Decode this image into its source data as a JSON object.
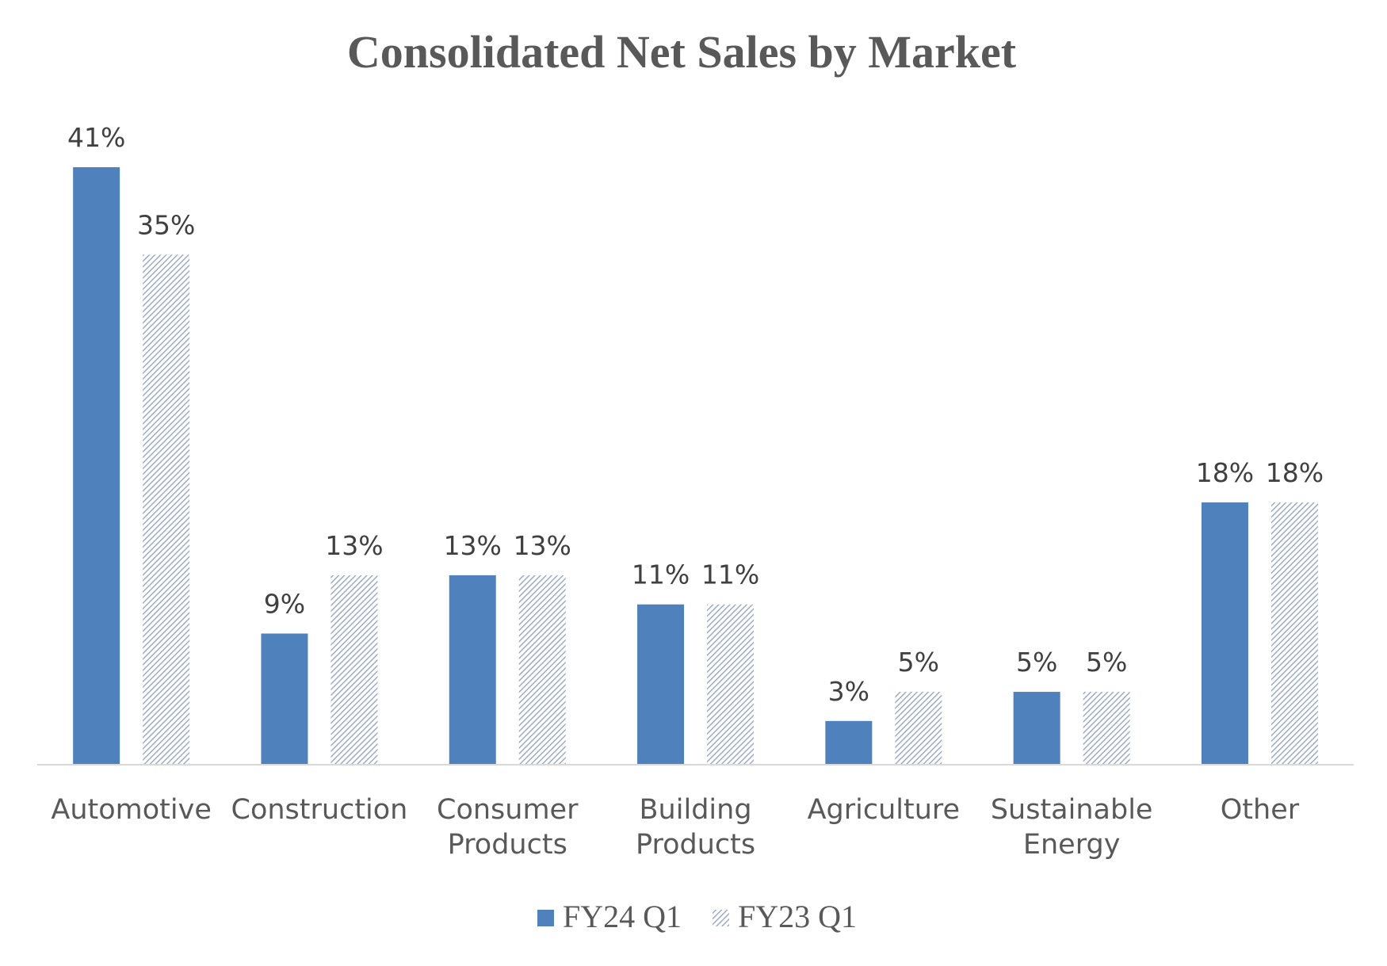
{
  "chart_data": {
    "type": "bar",
    "title": "Consolidated Net Sales by Market",
    "xlabel": "",
    "ylabel": "",
    "ylim": [
      0,
      41
    ],
    "grid": false,
    "legend_position": "bottom",
    "categories": [
      [
        "Automotive"
      ],
      [
        "Construction"
      ],
      [
        "Consumer",
        "Products"
      ],
      [
        "Building",
        "Products"
      ],
      [
        "Agriculture"
      ],
      [
        "Sustainable",
        "Energy"
      ],
      [
        "Other"
      ]
    ],
    "series": [
      {
        "name": "FY24 Q1",
        "values": [
          41,
          9,
          13,
          11,
          3,
          5,
          18
        ],
        "labels": [
          "41%",
          "9%",
          "13%",
          "11%",
          "3%",
          "5%",
          "18%"
        ],
        "color": "#4F81BD",
        "style": "solid"
      },
      {
        "name": "FY23 Q1",
        "values": [
          35,
          13,
          13,
          11,
          5,
          5,
          18
        ],
        "labels": [
          "35%",
          "13%",
          "13%",
          "11%",
          "5%",
          "5%",
          "18%"
        ],
        "color": "#8EA0BE",
        "style": "hatched"
      }
    ]
  }
}
